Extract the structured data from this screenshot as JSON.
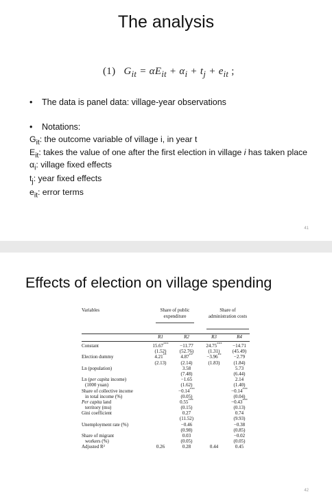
{
  "slide1": {
    "title": "The analysis",
    "equation": {
      "number": "(1)",
      "lhs": "G",
      "lhs_sub": "it",
      "rhs": "= αE",
      "rhs_sub": "it",
      "alpha": "+ α",
      "alpha_sub": "i",
      "t": "+ t",
      "t_sub": "j",
      "e": "+ e",
      "e_sub": "it",
      "end": ";"
    },
    "bullet1": "The data is panel data: village-year observations",
    "bullet2": "Notations:",
    "notes": [
      {
        "sym": "G",
        "sub": "it",
        "text": ": the outcome variable of village i, in year t"
      },
      {
        "sym": "E",
        "sub": "it",
        "text": ": takes the value of one after the first election in village ",
        "ital": "i",
        "rest": " has taken place"
      },
      {
        "sym": "α",
        "sub": "i",
        "text": ": village fixed effects"
      },
      {
        "sym": "t",
        "sub": "j",
        "text": ": year fixed effects"
      },
      {
        "sym": "e",
        "sub": "it",
        "text": ": error terms"
      }
    ],
    "page_number": "41"
  },
  "slide2": {
    "title": "Effects of election on village spending",
    "table": {
      "variables_header": "Variables",
      "group1": "Share of public expenditure",
      "group2": "Share of administration costs",
      "columns": [
        "R1",
        "R2",
        "R3",
        "R4"
      ],
      "rows": [
        {
          "label": "Constant",
          "v": [
            "15.67***",
            "−11.77",
            "24.75***",
            "−14.71"
          ]
        },
        {
          "label": "",
          "v": [
            "(1.52)",
            "(52.76)",
            "(1.31)",
            "(45.49)"
          ]
        },
        {
          "label": "Election dummy",
          "v": [
            "4.21**",
            "4.87**",
            "−3.96**",
            "−2.79"
          ]
        },
        {
          "label": "",
          "v": [
            "(2.13)",
            "(2.14)",
            "(1.83)",
            "(1.84)"
          ]
        },
        {
          "label": "Ln (population)",
          "v": [
            "",
            "3.58",
            "",
            "5.73"
          ]
        },
        {
          "label": "",
          "v": [
            "",
            "(7.48)",
            "",
            "(6.44)"
          ]
        },
        {
          "label": "Ln (per capita income)",
          "v": [
            "",
            "−1.65",
            "",
            "2.14"
          ]
        },
        {
          "label": "(1000 yuan)",
          "v": [
            "",
            "(1.62)",
            "",
            "(1.40)"
          ]
        },
        {
          "label": "Share of collective income",
          "v": [
            "",
            "−0.14***",
            "",
            "−0.14***"
          ]
        },
        {
          "label": "in total income (%)",
          "v": [
            "",
            "(0.05)",
            "",
            "(0.04)"
          ]
        },
        {
          "label": "Per capita land",
          "v": [
            "",
            "0.55***",
            "",
            "−0.43***"
          ]
        },
        {
          "label": "territory (mu)",
          "v": [
            "",
            "(0.15)",
            "",
            "(0.13)"
          ]
        },
        {
          "label": "Gini coefficient",
          "v": [
            "",
            "0.27",
            "",
            "0.74"
          ]
        },
        {
          "label": "",
          "v": [
            "",
            "(11.52)",
            "",
            "(9.93)"
          ]
        },
        {
          "label": "Unemployment rate (%)",
          "v": [
            "",
            "−0.46",
            "",
            "−0.38"
          ]
        },
        {
          "label": "",
          "v": [
            "",
            "(0.98)",
            "",
            "(0.85)"
          ]
        },
        {
          "label": "Share of migrant",
          "v": [
            "",
            "0.03",
            "",
            "−0.02"
          ]
        },
        {
          "label": "workers (%)",
          "v": [
            "",
            "(0.05)",
            "",
            "(0.05)"
          ]
        },
        {
          "label": "Adjusted R²",
          "v": [
            "0.26",
            "0.28",
            "0.44",
            "0.45"
          ]
        }
      ]
    },
    "page_number": "42"
  }
}
